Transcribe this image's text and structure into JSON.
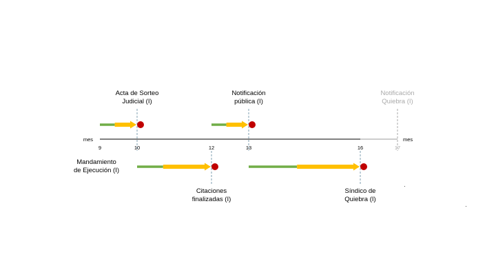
{
  "timeline": {
    "unit_left": "mes",
    "unit_right": "mes",
    "start": 9,
    "end": 17,
    "ticks": [
      {
        "value": 9,
        "label": "9",
        "faded": false
      },
      {
        "value": 10,
        "label": "10",
        "faded": false
      },
      {
        "value": 12,
        "label": "12",
        "faded": false
      },
      {
        "value": 13,
        "label": "13",
        "faded": false
      },
      {
        "value": 16,
        "label": "16",
        "faded": false
      },
      {
        "value": 17,
        "label": "17",
        "faded": true
      }
    ]
  },
  "events": [
    {
      "id": "acta-sorteo",
      "lines": [
        "Acta de Sorteo",
        "Judicial (I)"
      ],
      "month": 10,
      "row": "above",
      "faded": false,
      "green_from": 9,
      "yellow_from": 9.4
    },
    {
      "id": "notificacion-publica",
      "lines": [
        "Notificación",
        "pública (I)"
      ],
      "month": 13,
      "row": "above",
      "faded": false,
      "green_from": 12,
      "yellow_from": 12.4
    },
    {
      "id": "notificacion-quiebra",
      "lines": [
        "Notificación",
        "Quiebra (I)"
      ],
      "month": 17,
      "row": "above",
      "faded": true
    },
    {
      "id": "citaciones-finalizadas",
      "lines": [
        "Citaciones",
        "finalizadas (I)"
      ],
      "month": 12,
      "row": "below",
      "faded": false,
      "green_from": 10,
      "yellow_from": 10.7
    },
    {
      "id": "sindico-quiebra",
      "lines": [
        "Síndico de",
        "Quiebra (I)"
      ],
      "month": 16,
      "row": "below",
      "faded": false,
      "green_from": 13,
      "yellow_from": 14.3
    }
  ],
  "side_label": {
    "lines": [
      "Mandamiento",
      "de Ejecución (I)"
    ]
  },
  "colors": {
    "green": "#70ad47",
    "yellow": "#ffc000",
    "red": "#c00000",
    "dash": "#7f9fb0",
    "faded": "#aaaaaa",
    "axis": "#000000"
  }
}
